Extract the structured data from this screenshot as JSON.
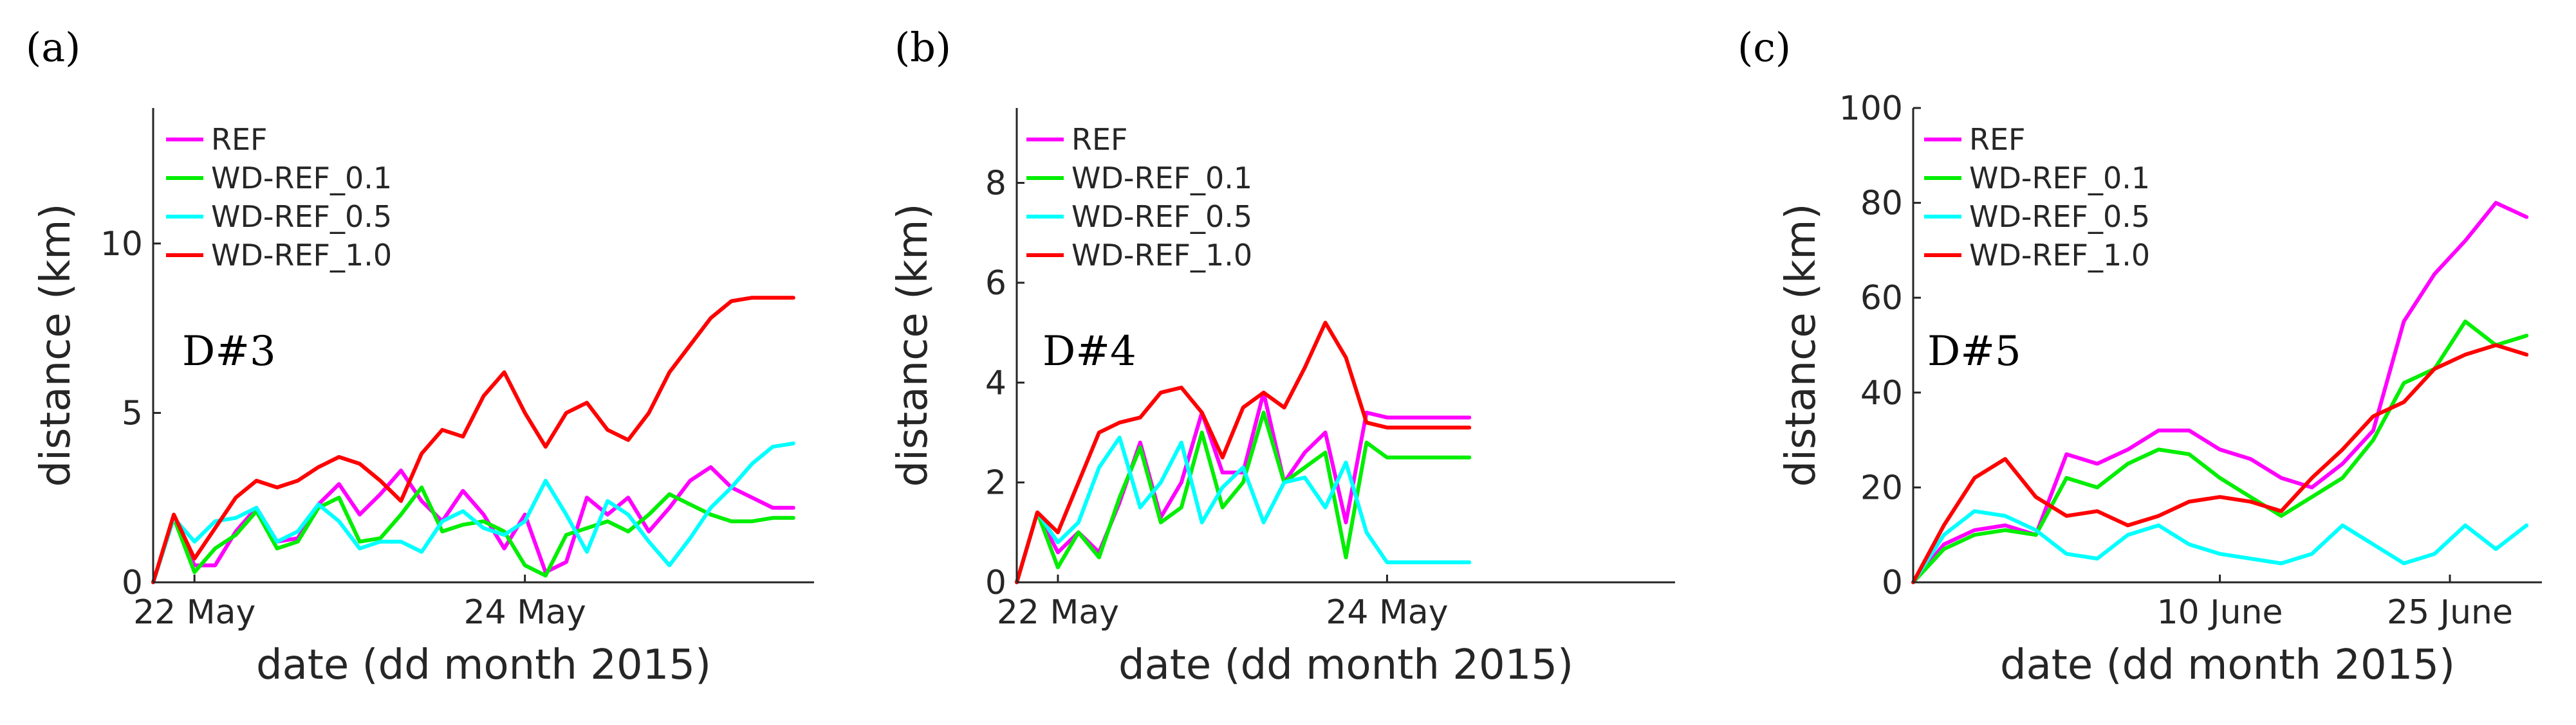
{
  "chart_data": [
    {
      "type": "line",
      "panel_label": "(a)",
      "annotation": "D#3",
      "xlabel": "date (dd month 2015)",
      "ylabel": "distance (km)",
      "x_unit": "days",
      "xlim": [
        "2015-05-21 18:00",
        "2015-05-25 18:00"
      ],
      "ylim": [
        0,
        14
      ],
      "xticks": [
        {
          "value": "2015-05-22 00:00",
          "label": "22 May"
        },
        {
          "value": "2015-05-24 00:00",
          "label": "24 May"
        }
      ],
      "yticks": [
        {
          "value": 0,
          "label": "0"
        },
        {
          "value": 5,
          "label": "5"
        },
        {
          "value": 10,
          "label": "10"
        }
      ],
      "legend_position": "top-left",
      "series": [
        {
          "name": "REF",
          "color": "#ff00ff",
          "x": [
            "2015-05-21 18:00",
            "2015-05-21 21:00",
            "2015-05-22 00:00",
            "2015-05-22 03:00",
            "2015-05-22 06:00",
            "2015-05-22 09:00",
            "2015-05-22 12:00",
            "2015-05-22 15:00",
            "2015-05-22 18:00",
            "2015-05-22 21:00",
            "2015-05-23 00:00",
            "2015-05-23 03:00",
            "2015-05-23 06:00",
            "2015-05-23 09:00",
            "2015-05-23 12:00",
            "2015-05-23 15:00",
            "2015-05-23 18:00",
            "2015-05-23 21:00",
            "2015-05-24 00:00",
            "2015-05-24 03:00",
            "2015-05-24 06:00",
            "2015-05-24 09:00",
            "2015-05-24 12:00",
            "2015-05-24 15:00",
            "2015-05-24 18:00",
            "2015-05-24 21:00",
            "2015-05-25 00:00",
            "2015-05-25 03:00",
            "2015-05-25 06:00",
            "2015-05-25 09:00",
            "2015-05-25 12:00",
            "2015-05-25 15:00"
          ],
          "y": [
            0.0,
            1.9,
            0.5,
            0.5,
            1.5,
            2.2,
            1.2,
            1.3,
            2.3,
            2.9,
            2.0,
            2.6,
            3.3,
            2.4,
            1.8,
            2.7,
            2.0,
            1.0,
            2.0,
            0.3,
            0.6,
            2.5,
            2.0,
            2.5,
            1.5,
            2.2,
            3.0,
            3.4,
            2.8,
            2.5,
            2.2,
            2.2
          ]
        },
        {
          "name": "WD-REF_0.1",
          "color": "#00ee00",
          "x": [
            "2015-05-21 18:00",
            "2015-05-21 21:00",
            "2015-05-22 00:00",
            "2015-05-22 03:00",
            "2015-05-22 06:00",
            "2015-05-22 09:00",
            "2015-05-22 12:00",
            "2015-05-22 15:00",
            "2015-05-22 18:00",
            "2015-05-22 21:00",
            "2015-05-23 00:00",
            "2015-05-23 03:00",
            "2015-05-23 06:00",
            "2015-05-23 09:00",
            "2015-05-23 12:00",
            "2015-05-23 15:00",
            "2015-05-23 18:00",
            "2015-05-23 21:00",
            "2015-05-24 00:00",
            "2015-05-24 03:00",
            "2015-05-24 06:00",
            "2015-05-24 09:00",
            "2015-05-24 12:00",
            "2015-05-24 15:00",
            "2015-05-24 18:00",
            "2015-05-24 21:00",
            "2015-05-25 00:00",
            "2015-05-25 03:00",
            "2015-05-25 06:00",
            "2015-05-25 09:00",
            "2015-05-25 12:00",
            "2015-05-25 15:00"
          ],
          "y": [
            0.0,
            1.9,
            0.3,
            1.0,
            1.4,
            2.1,
            1.0,
            1.2,
            2.2,
            2.5,
            1.2,
            1.3,
            2.0,
            2.8,
            1.5,
            1.7,
            1.8,
            1.5,
            0.5,
            0.2,
            1.4,
            1.6,
            1.8,
            1.5,
            2.0,
            2.6,
            2.3,
            2.0,
            1.8,
            1.8,
            1.9,
            1.9
          ]
        },
        {
          "name": "WD-REF_0.5",
          "color": "#00ffff",
          "x": [
            "2015-05-21 18:00",
            "2015-05-21 21:00",
            "2015-05-22 00:00",
            "2015-05-22 03:00",
            "2015-05-22 06:00",
            "2015-05-22 09:00",
            "2015-05-22 12:00",
            "2015-05-22 15:00",
            "2015-05-22 18:00",
            "2015-05-22 21:00",
            "2015-05-23 00:00",
            "2015-05-23 03:00",
            "2015-05-23 06:00",
            "2015-05-23 09:00",
            "2015-05-23 12:00",
            "2015-05-23 15:00",
            "2015-05-23 18:00",
            "2015-05-23 21:00",
            "2015-05-24 00:00",
            "2015-05-24 03:00",
            "2015-05-24 06:00",
            "2015-05-24 09:00",
            "2015-05-24 12:00",
            "2015-05-24 15:00",
            "2015-05-24 18:00",
            "2015-05-24 21:00",
            "2015-05-25 00:00",
            "2015-05-25 03:00",
            "2015-05-25 06:00",
            "2015-05-25 09:00",
            "2015-05-25 12:00",
            "2015-05-25 15:00"
          ],
          "y": [
            0.0,
            1.9,
            1.2,
            1.8,
            1.9,
            2.2,
            1.2,
            1.5,
            2.3,
            1.8,
            1.0,
            1.2,
            1.2,
            0.9,
            1.8,
            2.1,
            1.6,
            1.4,
            1.8,
            3.0,
            2.0,
            0.9,
            2.4,
            2.0,
            1.2,
            0.5,
            1.3,
            2.2,
            2.8,
            3.5,
            4.0,
            4.1
          ]
        },
        {
          "name": "WD-REF_1.0",
          "color": "#ff0000",
          "x": [
            "2015-05-21 18:00",
            "2015-05-21 21:00",
            "2015-05-22 00:00",
            "2015-05-22 03:00",
            "2015-05-22 06:00",
            "2015-05-22 09:00",
            "2015-05-22 12:00",
            "2015-05-22 15:00",
            "2015-05-22 18:00",
            "2015-05-22 21:00",
            "2015-05-23 00:00",
            "2015-05-23 03:00",
            "2015-05-23 06:00",
            "2015-05-23 09:00",
            "2015-05-23 12:00",
            "2015-05-23 15:00",
            "2015-05-23 18:00",
            "2015-05-23 21:00",
            "2015-05-24 00:00",
            "2015-05-24 03:00",
            "2015-05-24 06:00",
            "2015-05-24 09:00",
            "2015-05-24 12:00",
            "2015-05-24 15:00",
            "2015-05-24 18:00",
            "2015-05-24 21:00",
            "2015-05-25 00:00",
            "2015-05-25 03:00",
            "2015-05-25 06:00",
            "2015-05-25 09:00",
            "2015-05-25 12:00",
            "2015-05-25 15:00"
          ],
          "y": [
            0.0,
            2.0,
            0.7,
            1.6,
            2.5,
            3.0,
            2.8,
            3.0,
            3.4,
            3.7,
            3.5,
            3.0,
            2.4,
            3.8,
            4.5,
            4.3,
            5.5,
            6.2,
            5.0,
            4.0,
            5.0,
            5.3,
            4.5,
            4.2,
            5.0,
            6.2,
            7.0,
            7.8,
            8.3,
            8.4,
            8.4,
            8.4
          ]
        }
      ]
    },
    {
      "type": "line",
      "panel_label": "(b)",
      "annotation": "D#4",
      "xlabel": "date (dd month 2015)",
      "ylabel": "distance (km)",
      "x_unit": "days",
      "xlim": [
        "2015-05-21 18:00",
        "2015-05-25 18:00"
      ],
      "ylim": [
        0,
        9.5
      ],
      "xticks": [
        {
          "value": "2015-05-22 00:00",
          "label": "22 May"
        },
        {
          "value": "2015-05-24 00:00",
          "label": "24 May"
        }
      ],
      "yticks": [
        {
          "value": 0,
          "label": "0"
        },
        {
          "value": 2,
          "label": "2"
        },
        {
          "value": 4,
          "label": "4"
        },
        {
          "value": 6,
          "label": "6"
        },
        {
          "value": 8,
          "label": "8"
        }
      ],
      "legend_position": "top-left",
      "series": [
        {
          "name": "REF",
          "color": "#ff00ff",
          "x": [
            "2015-05-21 18:00",
            "2015-05-21 21:00",
            "2015-05-22 00:00",
            "2015-05-22 03:00",
            "2015-05-22 06:00",
            "2015-05-22 09:00",
            "2015-05-22 12:00",
            "2015-05-22 15:00",
            "2015-05-22 18:00",
            "2015-05-22 21:00",
            "2015-05-23 00:00",
            "2015-05-23 03:00",
            "2015-05-23 06:00",
            "2015-05-23 09:00",
            "2015-05-23 12:00",
            "2015-05-23 15:00",
            "2015-05-23 18:00",
            "2015-05-23 21:00",
            "2015-05-24 00:00",
            "2015-05-24 03:00",
            "2015-05-24 06:00",
            "2015-05-24 09:00",
            "2015-05-24 12:00"
          ],
          "y": [
            0.0,
            1.4,
            0.6,
            1.0,
            0.6,
            1.6,
            2.8,
            1.3,
            2.0,
            3.4,
            2.2,
            2.2,
            3.8,
            2.0,
            2.6,
            3.0,
            1.2,
            3.4,
            3.3,
            3.3,
            3.3,
            3.3,
            3.3
          ]
        },
        {
          "name": "WD-REF_0.1",
          "color": "#00ee00",
          "x": [
            "2015-05-21 18:00",
            "2015-05-21 21:00",
            "2015-05-22 00:00",
            "2015-05-22 03:00",
            "2015-05-22 06:00",
            "2015-05-22 09:00",
            "2015-05-22 12:00",
            "2015-05-22 15:00",
            "2015-05-22 18:00",
            "2015-05-22 21:00",
            "2015-05-23 00:00",
            "2015-05-23 03:00",
            "2015-05-23 06:00",
            "2015-05-23 09:00",
            "2015-05-23 12:00",
            "2015-05-23 15:00",
            "2015-05-23 18:00",
            "2015-05-23 21:00",
            "2015-05-24 00:00",
            "2015-05-24 03:00",
            "2015-05-24 06:00",
            "2015-05-24 09:00",
            "2015-05-24 12:00"
          ],
          "y": [
            0.0,
            1.4,
            0.3,
            1.0,
            0.5,
            1.7,
            2.7,
            1.2,
            1.5,
            3.0,
            1.5,
            2.0,
            3.4,
            2.0,
            2.3,
            2.6,
            0.5,
            2.8,
            2.5,
            2.5,
            2.5,
            2.5,
            2.5
          ]
        },
        {
          "name": "WD-REF_0.5",
          "color": "#00ffff",
          "x": [
            "2015-05-21 18:00",
            "2015-05-21 21:00",
            "2015-05-22 00:00",
            "2015-05-22 03:00",
            "2015-05-22 06:00",
            "2015-05-22 09:00",
            "2015-05-22 12:00",
            "2015-05-22 15:00",
            "2015-05-22 18:00",
            "2015-05-22 21:00",
            "2015-05-23 00:00",
            "2015-05-23 03:00",
            "2015-05-23 06:00",
            "2015-05-23 09:00",
            "2015-05-23 12:00",
            "2015-05-23 15:00",
            "2015-05-23 18:00",
            "2015-05-23 21:00",
            "2015-05-24 00:00",
            "2015-05-24 03:00",
            "2015-05-24 06:00",
            "2015-05-24 09:00",
            "2015-05-24 12:00"
          ],
          "y": [
            0.0,
            1.4,
            0.8,
            1.2,
            2.3,
            2.9,
            1.5,
            2.0,
            2.8,
            1.2,
            1.9,
            2.3,
            1.2,
            2.0,
            2.1,
            1.5,
            2.4,
            1.0,
            0.4,
            0.4,
            0.4,
            0.4,
            0.4
          ]
        },
        {
          "name": "WD-REF_1.0",
          "color": "#ff0000",
          "x": [
            "2015-05-21 18:00",
            "2015-05-21 21:00",
            "2015-05-22 00:00",
            "2015-05-22 03:00",
            "2015-05-22 06:00",
            "2015-05-22 09:00",
            "2015-05-22 12:00",
            "2015-05-22 15:00",
            "2015-05-22 18:00",
            "2015-05-22 21:00",
            "2015-05-23 00:00",
            "2015-05-23 03:00",
            "2015-05-23 06:00",
            "2015-05-23 09:00",
            "2015-05-23 12:00",
            "2015-05-23 15:00",
            "2015-05-23 18:00",
            "2015-05-23 21:00",
            "2015-05-24 00:00",
            "2015-05-24 03:00",
            "2015-05-24 06:00",
            "2015-05-24 09:00",
            "2015-05-24 12:00"
          ],
          "y": [
            0.0,
            1.4,
            1.0,
            2.0,
            3.0,
            3.2,
            3.3,
            3.8,
            3.9,
            3.4,
            2.5,
            3.5,
            3.8,
            3.5,
            4.3,
            5.2,
            4.5,
            3.2,
            3.1,
            3.1,
            3.1,
            3.1,
            3.1
          ]
        }
      ]
    },
    {
      "type": "line",
      "panel_label": "(c)",
      "annotation": "D#5",
      "xlabel": "date (dd month 2015)",
      "ylabel": "distance (km)",
      "x_unit": "days",
      "xlim": [
        "2015-05-21",
        "2015-07-01"
      ],
      "ylim": [
        0,
        100
      ],
      "xticks": [
        {
          "value": "2015-06-10",
          "label": "10 June"
        },
        {
          "value": "2015-06-25",
          "label": "25 June"
        }
      ],
      "yticks": [
        {
          "value": 0,
          "label": "0"
        },
        {
          "value": 20,
          "label": "20"
        },
        {
          "value": 40,
          "label": "40"
        },
        {
          "value": 60,
          "label": "60"
        },
        {
          "value": 80,
          "label": "80"
        },
        {
          "value": 100,
          "label": "100"
        }
      ],
      "legend_position": "top-left",
      "series": [
        {
          "name": "REF",
          "color": "#ff00ff",
          "x": [
            "2015-05-21",
            "2015-05-23",
            "2015-05-25",
            "2015-05-27",
            "2015-05-29",
            "2015-05-31",
            "2015-06-02",
            "2015-06-04",
            "2015-06-06",
            "2015-06-08",
            "2015-06-10",
            "2015-06-12",
            "2015-06-14",
            "2015-06-16",
            "2015-06-18",
            "2015-06-20",
            "2015-06-22",
            "2015-06-24",
            "2015-06-26",
            "2015-06-28",
            "2015-06-30"
          ],
          "y": [
            0,
            8,
            11,
            12,
            10,
            27,
            25,
            28,
            32,
            32,
            28,
            26,
            22,
            20,
            25,
            32,
            55,
            65,
            72,
            80,
            77
          ]
        },
        {
          "name": "WD-REF_0.1",
          "color": "#00ee00",
          "x": [
            "2015-05-21",
            "2015-05-23",
            "2015-05-25",
            "2015-05-27",
            "2015-05-29",
            "2015-05-31",
            "2015-06-02",
            "2015-06-04",
            "2015-06-06",
            "2015-06-08",
            "2015-06-10",
            "2015-06-12",
            "2015-06-14",
            "2015-06-16",
            "2015-06-18",
            "2015-06-20",
            "2015-06-22",
            "2015-06-24",
            "2015-06-26",
            "2015-06-28",
            "2015-06-30"
          ],
          "y": [
            0,
            7,
            10,
            11,
            10,
            22,
            20,
            25,
            28,
            27,
            22,
            18,
            14,
            18,
            22,
            30,
            42,
            45,
            55,
            50,
            52
          ]
        },
        {
          "name": "WD-REF_0.5",
          "color": "#00ffff",
          "x": [
            "2015-05-21",
            "2015-05-23",
            "2015-05-25",
            "2015-05-27",
            "2015-05-29",
            "2015-05-31",
            "2015-06-02",
            "2015-06-04",
            "2015-06-06",
            "2015-06-08",
            "2015-06-10",
            "2015-06-12",
            "2015-06-14",
            "2015-06-16",
            "2015-06-18",
            "2015-06-20",
            "2015-06-22",
            "2015-06-24",
            "2015-06-26",
            "2015-06-28",
            "2015-06-30"
          ],
          "y": [
            0,
            10,
            15,
            14,
            11,
            6,
            5,
            10,
            12,
            8,
            6,
            5,
            4,
            6,
            12,
            8,
            4,
            6,
            12,
            7,
            12
          ]
        },
        {
          "name": "WD-REF_1.0",
          "color": "#ff0000",
          "x": [
            "2015-05-21",
            "2015-05-23",
            "2015-05-25",
            "2015-05-27",
            "2015-05-29",
            "2015-05-31",
            "2015-06-02",
            "2015-06-04",
            "2015-06-06",
            "2015-06-08",
            "2015-06-10",
            "2015-06-12",
            "2015-06-14",
            "2015-06-16",
            "2015-06-18",
            "2015-06-20",
            "2015-06-22",
            "2015-06-24",
            "2015-06-26",
            "2015-06-28",
            "2015-06-30"
          ],
          "y": [
            0,
            12,
            22,
            26,
            18,
            14,
            15,
            12,
            14,
            17,
            18,
            17,
            15,
            22,
            28,
            35,
            38,
            45,
            48,
            50,
            48
          ]
        }
      ]
    }
  ]
}
